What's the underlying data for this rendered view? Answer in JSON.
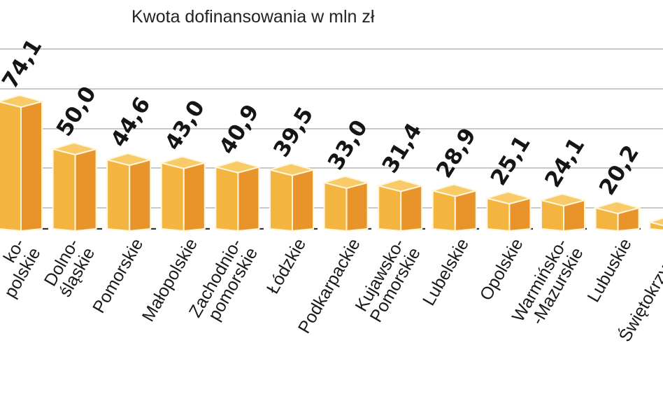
{
  "chart_data": {
    "type": "bar",
    "title": "Kwota dofinansowania w mln zł",
    "xlabel": "",
    "ylabel": "",
    "grid": true,
    "categories": [
      [
        "ko-",
        "polskie"
      ],
      [
        "Dolno-",
        "śląskie"
      ],
      [
        "Pomorskie"
      ],
      [
        "Małopolskie"
      ],
      [
        "Zachodnio-",
        "pomorskie"
      ],
      [
        "Łódzkie"
      ],
      [
        "Podkarpackie"
      ],
      [
        "Kujawsko-",
        "Pomorskie"
      ],
      [
        "Lubelskie"
      ],
      [
        "Opolskie"
      ],
      [
        "Warmińsko-",
        "-Mazurskie"
      ],
      [
        "Lubuskie"
      ],
      [
        "Świętokrzyskie"
      ]
    ],
    "values": [
      74.1,
      50.0,
      44.6,
      43.0,
      40.9,
      39.5,
      33.0,
      31.4,
      28.9,
      25.1,
      24.1,
      20.2,
      13
    ],
    "value_labels": [
      "74,1",
      "50,0",
      "44,6",
      "43,0",
      "40,9",
      "39,5",
      "33,0",
      "31,4",
      "28,9",
      "25,1",
      "24,1",
      "20,2",
      ""
    ],
    "colors": {
      "front": "#f4b540",
      "side": "#e8942a",
      "top": "#f8ca68",
      "outline": "#fff6dc"
    }
  }
}
